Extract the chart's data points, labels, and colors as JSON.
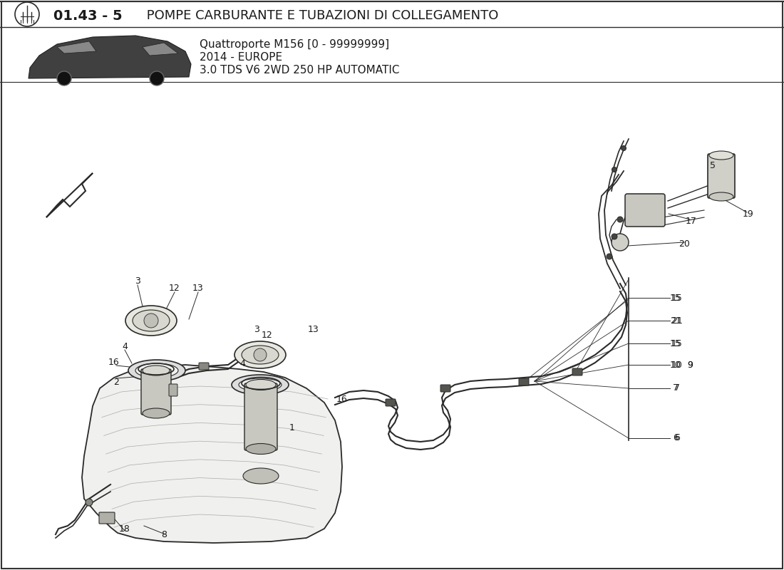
{
  "title_bold": "01.43 - 5",
  "title_normal": " POMPE CARBURANTE E TUBAZIONI DI COLLEGAMENTO",
  "subtitle_line1": "Quattroporte M156 [0 - 99999999]",
  "subtitle_line2": "2014 - EUROPE",
  "subtitle_line3": "3.0 TDS V6 2WD 250 HP AUTOMATIC",
  "bg_color": "#ffffff",
  "text_color": "#1a1a1a",
  "line_color": "#2a2a2a",
  "fig_width": 11.0,
  "fig_height": 8.0,
  "dpi": 100
}
